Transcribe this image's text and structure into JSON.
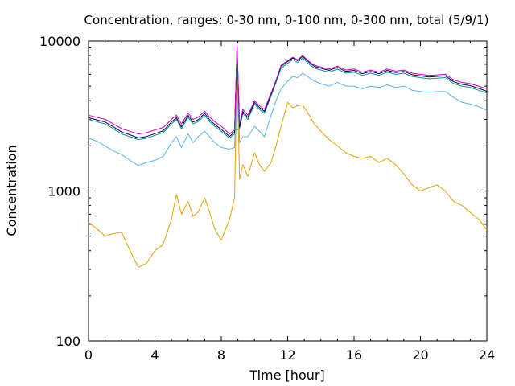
{
  "chart_data": {
    "type": "line",
    "title": "Concentration, ranges: 0-30 nm, 0-100 nm, 0-300 nm, total (5/9/1)",
    "xlabel": "Time [hour]",
    "ylabel": "Concentration",
    "xlim": [
      0,
      24
    ],
    "ylim": [
      100,
      10000
    ],
    "yscale": "log",
    "grid": false,
    "x_ticks": [
      0,
      4,
      8,
      12,
      16,
      20,
      24
    ],
    "x_tick_labels": [
      "0",
      "4",
      "8",
      "12",
      "16",
      "20",
      "24"
    ],
    "y_ticks": [
      100,
      1000,
      10000
    ],
    "y_tick_labels": [
      "100",
      "1000",
      "10000"
    ],
    "x": [
      0,
      0.5,
      1,
      1.5,
      2,
      2.5,
      3,
      3.5,
      4,
      4.5,
      5,
      5.3,
      5.6,
      6,
      6.3,
      6.6,
      7,
      7.3,
      7.6,
      8,
      8.5,
      8.8,
      8.95,
      9.1,
      9.3,
      9.6,
      10,
      10.3,
      10.6,
      11,
      11.3,
      11.6,
      12,
      12.3,
      12.6,
      12.9,
      13.3,
      13.6,
      14,
      14.5,
      15,
      15.5,
      16,
      16.5,
      17,
      17.5,
      18,
      18.5,
      19,
      19.5,
      20,
      20.5,
      21,
      21.5,
      22,
      22.5,
      23,
      23.5,
      24
    ],
    "series": [
      {
        "color": "#e2a100",
        "values": [
          620,
          560,
          500,
          520,
          530,
          400,
          310,
          330,
          400,
          440,
          650,
          950,
          700,
          850,
          680,
          720,
          900,
          720,
          560,
          470,
          650,
          900,
          6500,
          1200,
          1500,
          1250,
          1800,
          1500,
          1350,
          1550,
          2000,
          2700,
          3900,
          3600,
          3700,
          3750,
          3200,
          2800,
          2500,
          2200,
          2000,
          1800,
          1700,
          1650,
          1700,
          1550,
          1650,
          1500,
          1300,
          1100,
          1000,
          1050,
          1100,
          1000,
          850,
          800,
          720,
          650,
          550
        ]
      },
      {
        "color": "#56b4e9",
        "values": [
          2250,
          2150,
          2000,
          1850,
          1750,
          1600,
          1480,
          1550,
          1600,
          1700,
          2100,
          2300,
          1950,
          2400,
          2100,
          2300,
          2500,
          2300,
          2100,
          1950,
          1900,
          1950,
          7000,
          2100,
          2300,
          2300,
          2700,
          2500,
          2300,
          3200,
          4000,
          4800,
          5400,
          5800,
          5700,
          6100,
          5700,
          5400,
          5200,
          5000,
          5300,
          5000,
          5000,
          4800,
          5000,
          4900,
          5100,
          4900,
          5000,
          4700,
          4600,
          4550,
          4600,
          4600,
          4200,
          3900,
          3800,
          3650,
          3450
        ]
      },
      {
        "color": "#009e73",
        "values": [
          3000,
          2900,
          2800,
          2600,
          2400,
          2300,
          2200,
          2250,
          2350,
          2450,
          2800,
          3000,
          2600,
          3100,
          2800,
          2900,
          3200,
          2900,
          2700,
          2500,
          2250,
          2400,
          9000,
          2600,
          3300,
          3000,
          3800,
          3500,
          3300,
          4300,
          5300,
          6600,
          7100,
          7500,
          7200,
          7700,
          7000,
          6600,
          6400,
          6200,
          6500,
          6100,
          6200,
          5900,
          6100,
          5900,
          6200,
          6000,
          6100,
          5800,
          5700,
          5600,
          5650,
          5700,
          5200,
          5000,
          4900,
          4700,
          4500
        ]
      },
      {
        "color": "#000060",
        "values": [
          3080,
          2980,
          2880,
          2680,
          2470,
          2370,
          2260,
          2310,
          2410,
          2520,
          2880,
          3080,
          2680,
          3190,
          2880,
          2980,
          3290,
          2980,
          2780,
          2570,
          2310,
          2470,
          9200,
          2680,
          3390,
          3090,
          3900,
          3600,
          3390,
          4420,
          5450,
          6780,
          7300,
          7700,
          7400,
          7900,
          7200,
          6780,
          6580,
          6370,
          6680,
          6270,
          6370,
          6060,
          6270,
          6060,
          6370,
          6170,
          6270,
          5960,
          5860,
          5760,
          5810,
          5860,
          5350,
          5140,
          5040,
          4830,
          4620
        ]
      },
      {
        "color": "#cc00cc",
        "values": [
          3200,
          3100,
          3000,
          2800,
          2600,
          2500,
          2400,
          2450,
          2550,
          2650,
          3000,
          3200,
          2800,
          3300,
          3000,
          3100,
          3400,
          3100,
          2900,
          2700,
          2400,
          2550,
          9400,
          2800,
          3500,
          3200,
          4000,
          3700,
          3500,
          4500,
          5500,
          6900,
          7400,
          7800,
          7500,
          8000,
          7300,
          6900,
          6700,
          6500,
          6800,
          6400,
          6500,
          6200,
          6400,
          6200,
          6500,
          6300,
          6400,
          6100,
          6000,
          5900,
          5950,
          6000,
          5500,
          5300,
          5200,
          5000,
          4800
        ]
      }
    ]
  }
}
